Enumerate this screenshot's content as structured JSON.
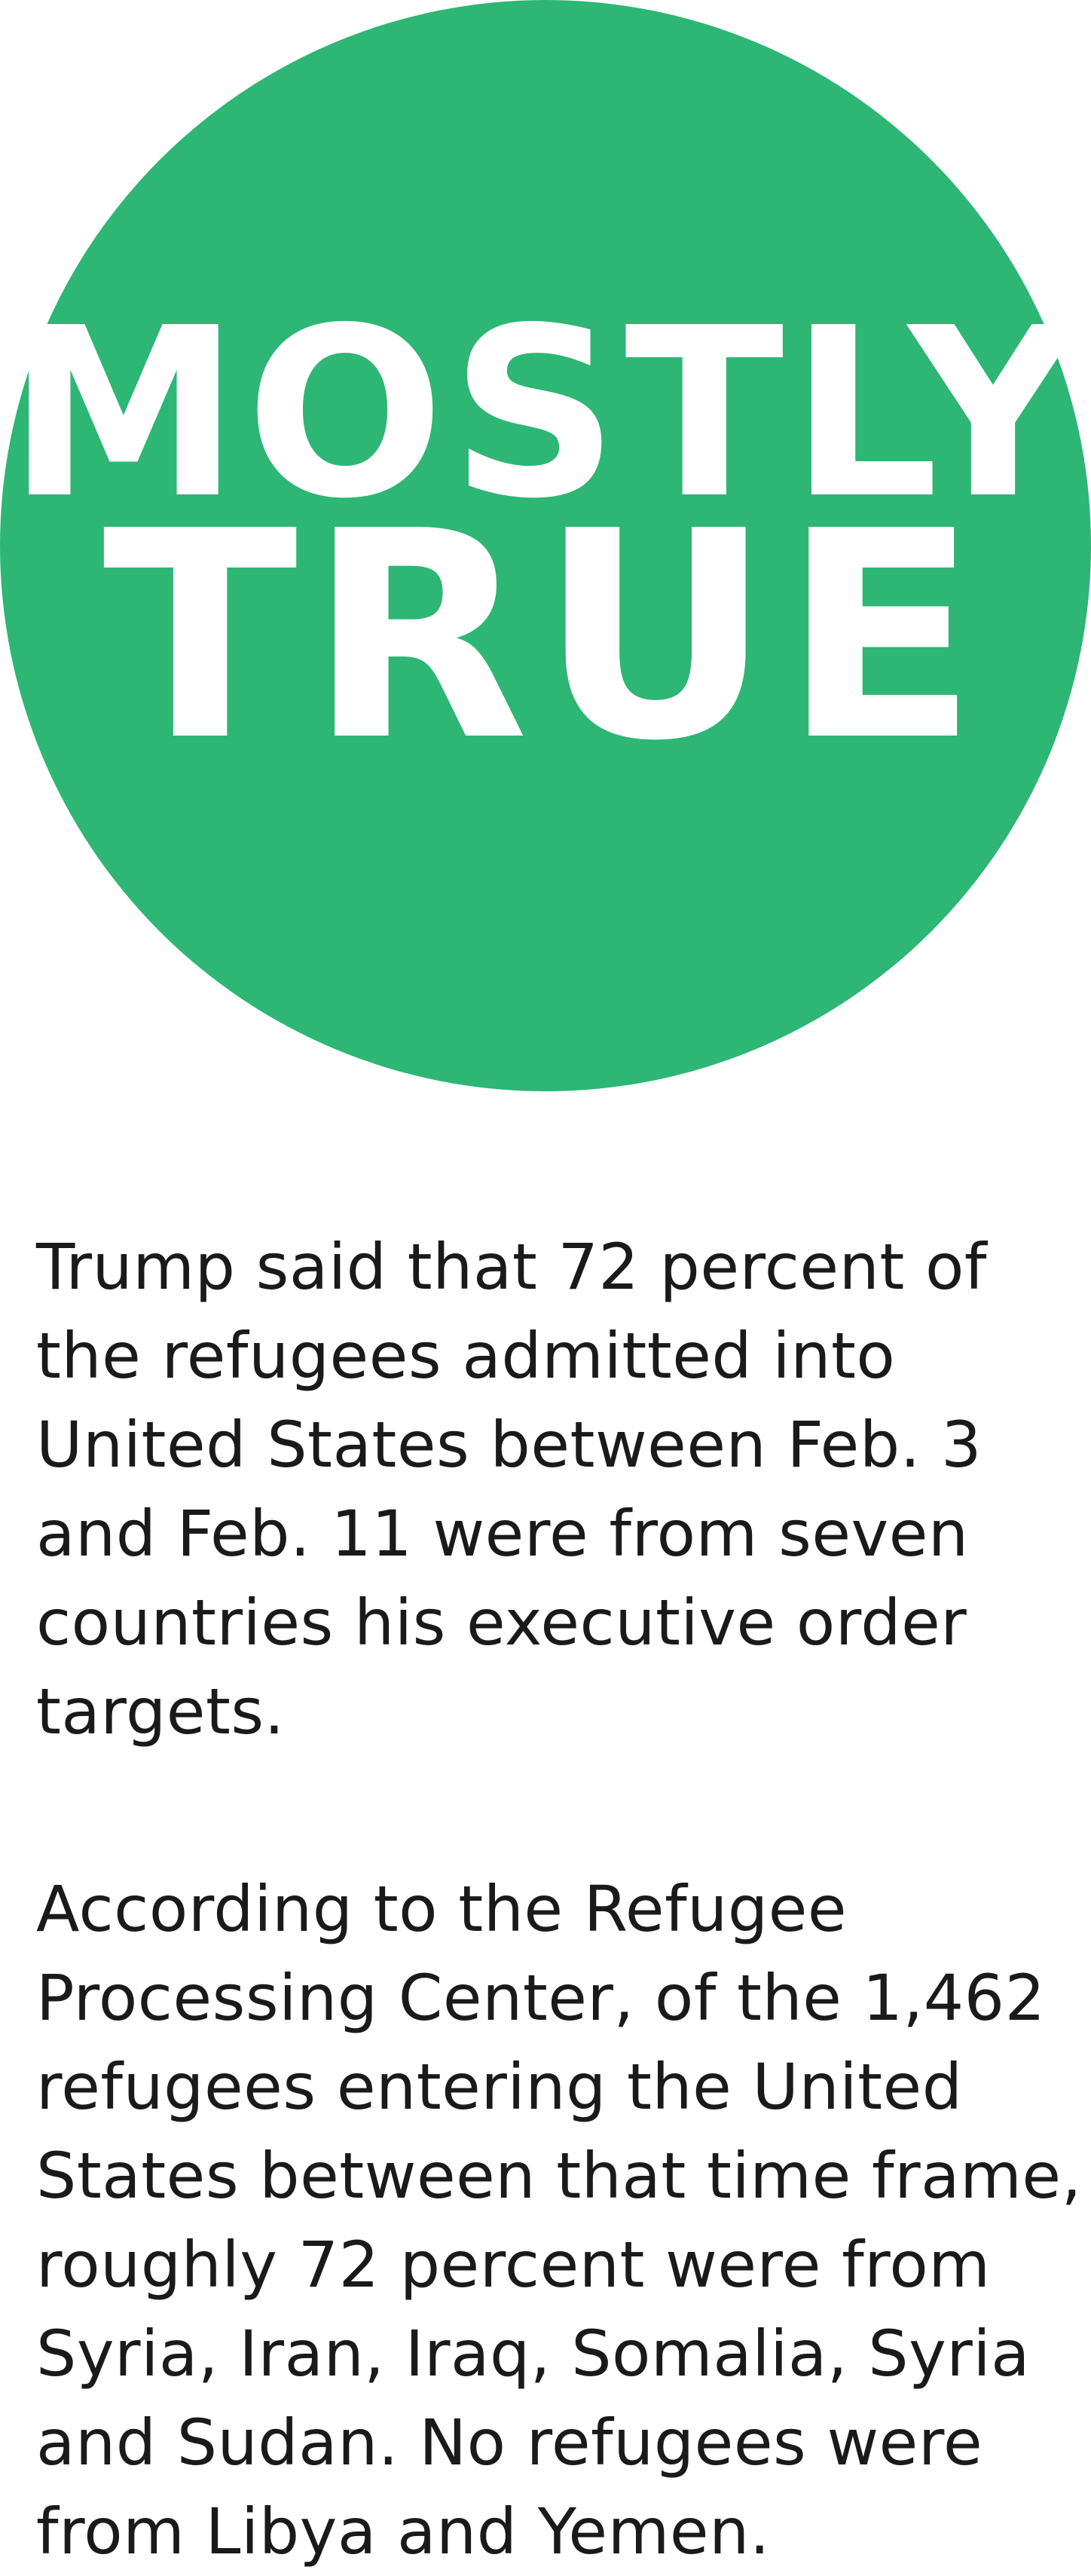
{
  "rating": {
    "line1": "MOSTLY",
    "line2": "TRUE",
    "badge_color": "#2db674",
    "text_color": "#ffffff"
  },
  "paragraphs": [
    {
      "lines": [
        "Trump said that 72 percent of",
        "the refugees admitted into",
        "United States between Feb. 3",
        "and Feb. 11 were from seven",
        "countries his executive order",
        "targets."
      ]
    },
    {
      "lines": [
        "According to the Refugee",
        "Processing Center, of the 1,462",
        "refugees entering the United",
        "States between that time frame,",
        "roughly 72 percent were from",
        "Syria, Iran, Iraq, Somalia, Syria",
        "and Sudan. No refugees were",
        "from Libya and Yemen."
      ]
    }
  ]
}
